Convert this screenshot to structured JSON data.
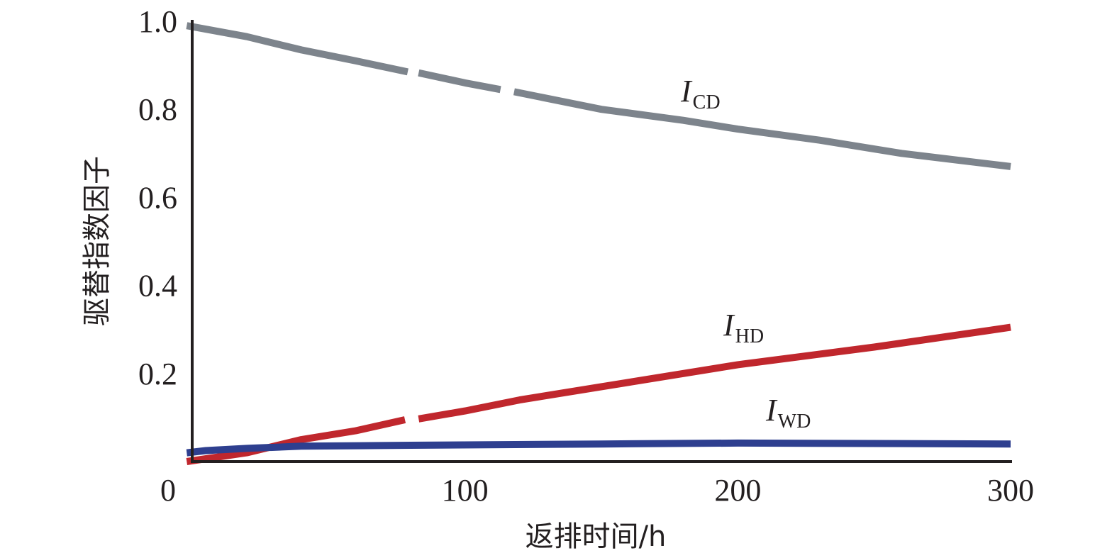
{
  "chart_data": {
    "type": "line",
    "title": "",
    "xlabel": "返排时间/h",
    "ylabel": "驱替指数因子",
    "xlim": [
      0,
      300
    ],
    "ylim": [
      0,
      1.0
    ],
    "xticks": [
      "0",
      "100",
      "200",
      "300"
    ],
    "yticks": [
      "0.2",
      "0.4",
      "0.6",
      "0.8",
      "1.0"
    ],
    "grid": false,
    "series": [
      {
        "name": "I",
        "sub": "CD",
        "color": "#7d848c",
        "x": [
          -2,
          20,
          40,
          60,
          79,
          null,
          83,
          100,
          113,
          null,
          118,
          150,
          180,
          200,
          230,
          260,
          300
        ],
        "y": [
          0.99,
          0.965,
          0.935,
          0.91,
          0.885,
          null,
          0.883,
          0.86,
          0.845,
          null,
          0.84,
          0.8,
          0.775,
          0.755,
          0.73,
          0.7,
          0.67
        ]
      },
      {
        "name": "I",
        "sub": "HD",
        "color": "#c0272d",
        "x": [
          -2,
          20,
          40,
          60,
          78,
          null,
          83,
          100,
          120,
          150,
          200,
          250,
          300
        ],
        "y": [
          0.0,
          0.02,
          0.05,
          0.07,
          0.095,
          null,
          0.097,
          0.115,
          0.14,
          0.17,
          0.22,
          0.26,
          0.305
        ]
      },
      {
        "name": "I",
        "sub": "WD",
        "color": "#2e3f8f",
        "x": [
          -2,
          5,
          20,
          40,
          80,
          150,
          200,
          300
        ],
        "y": [
          0.02,
          0.025,
          0.03,
          0.035,
          0.037,
          0.04,
          0.042,
          0.04
        ]
      }
    ]
  }
}
